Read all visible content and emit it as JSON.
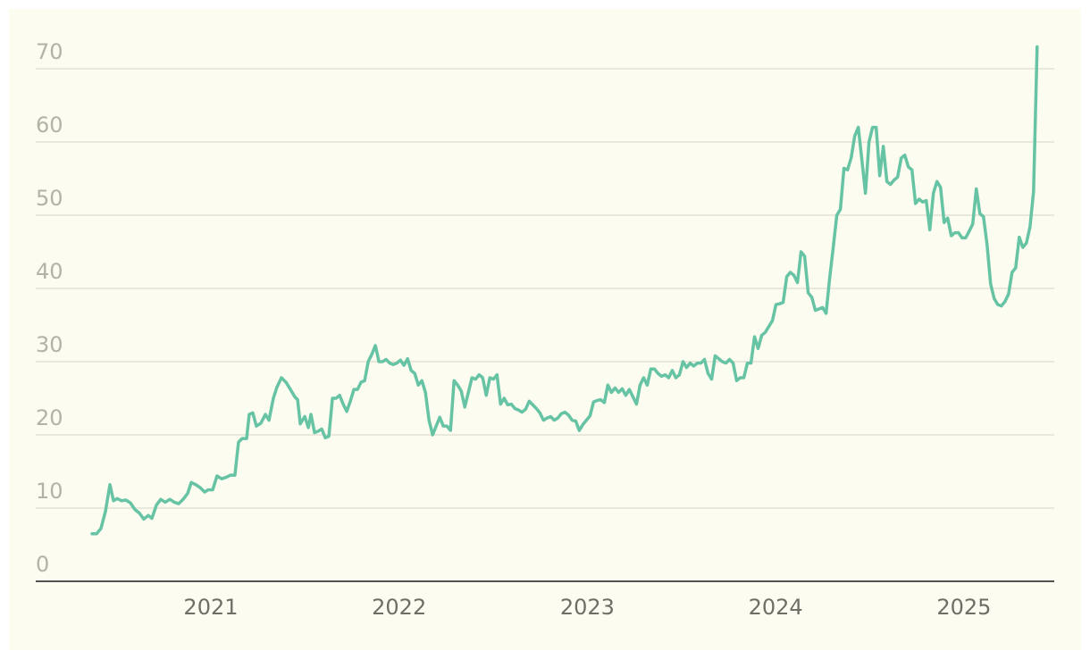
{
  "chart_data": {
    "type": "line",
    "color": "#66c3a4",
    "xlim": [
      2020.07,
      2025.48
    ],
    "xticks": [
      2021,
      2022,
      2023,
      2024,
      2025
    ],
    "ylim": [
      0,
      75
    ],
    "yticks": [
      0,
      10,
      20,
      30,
      40,
      50,
      60,
      70
    ],
    "grid": true,
    "x": [
      2020.369,
      2020.393,
      2020.416,
      2020.44,
      2020.464,
      2020.483,
      2020.502,
      2020.526,
      2020.549,
      2020.573,
      2020.597,
      2020.621,
      2020.644,
      2020.668,
      2020.687,
      2020.711,
      2020.734,
      2020.758,
      2020.782,
      2020.806,
      2020.829,
      2020.853,
      2020.877,
      2020.896,
      2020.92,
      2020.943,
      2020.967,
      2020.986,
      2021.01,
      2021.033,
      2021.057,
      2021.081,
      2021.105,
      2021.128,
      2021.147,
      2021.166,
      2021.19,
      2021.204,
      2021.223,
      2021.242,
      2021.266,
      2021.29,
      2021.309,
      2021.332,
      2021.351,
      2021.375,
      2021.399,
      2021.423,
      2021.446,
      2021.461,
      2021.475,
      2021.499,
      2021.518,
      2021.532,
      2021.551,
      2021.57,
      2021.589,
      2021.608,
      2021.627,
      2021.646,
      2021.665,
      2021.684,
      2021.703,
      2021.722,
      2021.741,
      2021.76,
      2021.779,
      2021.798,
      2021.817,
      2021.836,
      2021.855,
      2021.874,
      2021.893,
      2021.912,
      2021.931,
      2021.95,
      2021.969,
      2021.988,
      2022.007,
      2022.026,
      2022.045,
      2022.064,
      2022.083,
      2022.102,
      2022.121,
      2022.14,
      2022.159,
      2022.178,
      2022.197,
      2022.216,
      2022.235,
      2022.254,
      2022.273,
      2022.292,
      2022.311,
      2022.33,
      2022.349,
      2022.368,
      2022.387,
      2022.406,
      2022.425,
      2022.444,
      2022.463,
      2022.482,
      2022.501,
      2022.52,
      2022.539,
      2022.558,
      2022.577,
      2022.596,
      2022.615,
      2022.634,
      2022.653,
      2022.672,
      2022.691,
      2022.71,
      2022.729,
      2022.748,
      2022.767,
      2022.786,
      2022.805,
      2022.824,
      2022.843,
      2022.862,
      2022.881,
      2022.9,
      2022.919,
      2022.938,
      2022.957,
      2022.976,
      2022.995,
      2023.014,
      2023.033,
      2023.052,
      2023.071,
      2023.09,
      2023.109,
      2023.128,
      2023.147,
      2023.166,
      2023.185,
      2023.204,
      2023.223,
      2023.242,
      2023.261,
      2023.28,
      2023.299,
      2023.318,
      2023.337,
      2023.356,
      2023.375,
      2023.394,
      2023.413,
      2023.432,
      2023.451,
      2023.47,
      2023.489,
      2023.508,
      2023.527,
      2023.546,
      2023.565,
      2023.584,
      2023.603,
      2023.622,
      2023.641,
      2023.66,
      2023.679,
      2023.698,
      2023.717,
      2023.736,
      2023.755,
      2023.774,
      2023.793,
      2023.812,
      2023.831,
      2023.85,
      2023.869,
      2023.888,
      2023.907,
      2023.926,
      2023.945,
      2023.964,
      2023.983,
      2024.002,
      2024.021,
      2024.04,
      2024.059,
      2024.078,
      2024.097,
      2024.116,
      2024.135,
      2024.154,
      2024.173,
      2024.192,
      2024.211,
      2024.23,
      2024.249,
      2024.268,
      2024.287,
      2024.306,
      2024.325,
      2024.344,
      2024.363,
      2024.382,
      2024.401,
      2024.42,
      2024.439,
      2024.458,
      2024.477,
      2024.496,
      2024.515,
      2024.534,
      2024.553,
      2024.572,
      2024.591,
      2024.61,
      2024.629,
      2024.648,
      2024.667,
      2024.686,
      2024.705,
      2024.724,
      2024.743,
      2024.762,
      2024.781,
      2024.8,
      2024.819,
      2024.838,
      2024.857,
      2024.876,
      2024.895,
      2024.914,
      2024.933,
      2024.952,
      2024.971,
      2024.99,
      2025.009,
      2025.028,
      2025.047,
      2025.066,
      2025.085,
      2025.104,
      2025.123,
      2025.142,
      2025.161,
      2025.18,
      2025.199,
      2025.218,
      2025.237,
      2025.256,
      2025.275,
      2025.294,
      2025.313,
      2025.332,
      2025.351,
      2025.37,
      2025.389
    ],
    "values": [
      6.5,
      6.5,
      7.2,
      9.5,
      13.2,
      11,
      11.3,
      11,
      11.1,
      10.7,
      9.8,
      9.3,
      8.5,
      9,
      8.6,
      10.4,
      11.2,
      10.8,
      11.2,
      10.8,
      10.6,
      11.2,
      12,
      13.5,
      13.2,
      12.8,
      12.2,
      12.5,
      12.5,
      14.4,
      14,
      14.2,
      14.5,
      14.5,
      19,
      19.5,
      19.5,
      22.8,
      23,
      21.2,
      21.6,
      22.8,
      22,
      25,
      26.5,
      27.8,
      27.2,
      26.2,
      25.2,
      24.8,
      21.5,
      22.5,
      21,
      22.8,
      20.3,
      20.5,
      20.8,
      19.6,
      19.8,
      25,
      25,
      25.4,
      24.2,
      23.2,
      24.6,
      26.2,
      26.2,
      27.2,
      27.4,
      30,
      31,
      32.2,
      30,
      30,
      30.3,
      29.8,
      29.6,
      29.8,
      30.2,
      29.5,
      30.4,
      28.8,
      28.4,
      26.8,
      27.4,
      25.8,
      22,
      20,
      21.2,
      22.4,
      21.2,
      21.2,
      20.6,
      27.4,
      26.8,
      26,
      23.8,
      25.8,
      27.8,
      27.6,
      28.2,
      27.8,
      25.4,
      27.8,
      27.6,
      28.2,
      24.2,
      25,
      24.1,
      24.2,
      23.6,
      23.4,
      23.1,
      23.5,
      24.6,
      24.1,
      23.6,
      23,
      22,
      22.3,
      22.5,
      22,
      22.3,
      22.9,
      23.1,
      22.7,
      22,
      21.9,
      20.6,
      21.4,
      22,
      22.6,
      24.5,
      24.7,
      24.8,
      24.4,
      26.8,
      25.8,
      26.4,
      25.8,
      26.3,
      25.4,
      26.2,
      25.2,
      24.2,
      26.8,
      27.8,
      26.8,
      29,
      29,
      28.4,
      28,
      28.2,
      27.8,
      28.8,
      27.8,
      28.2,
      30,
      29.2,
      29.8,
      29.4,
      29.8,
      29.8,
      30.3,
      28.4,
      27.6,
      30.8,
      30.4,
      30,
      29.8,
      30.3,
      29.8,
      27.4,
      27.8,
      27.8,
      29.8,
      29.8,
      33.4,
      31.8,
      33.6,
      34,
      34.8,
      35.6,
      37.8,
      37.9,
      38.1,
      41.6,
      42.2,
      41.8,
      40.8,
      45,
      44.4,
      39.4,
      38.8,
      37,
      37.2,
      37.4,
      36.6,
      41.4,
      45.6,
      50,
      50.8,
      56.4,
      56.2,
      57.8,
      60.8,
      62,
      57.6,
      53,
      60,
      62,
      62,
      55.4,
      59.4,
      54.6,
      54.2,
      54.8,
      55.2,
      57.8,
      58.2,
      56.6,
      56.2,
      51.6,
      52.2,
      51.8,
      52,
      48,
      53,
      54.6,
      53.8,
      49,
      49.6,
      47.2,
      47.6,
      47.6,
      46.9,
      46.9,
      47.8,
      48.8,
      53.6,
      50.2,
      49.8,
      46,
      40.6,
      38.6,
      37.8,
      37.6,
      38.2,
      39.2,
      42.2,
      42.8,
      47,
      45.6,
      46.2,
      48.4,
      53.2,
      73
    ]
  }
}
